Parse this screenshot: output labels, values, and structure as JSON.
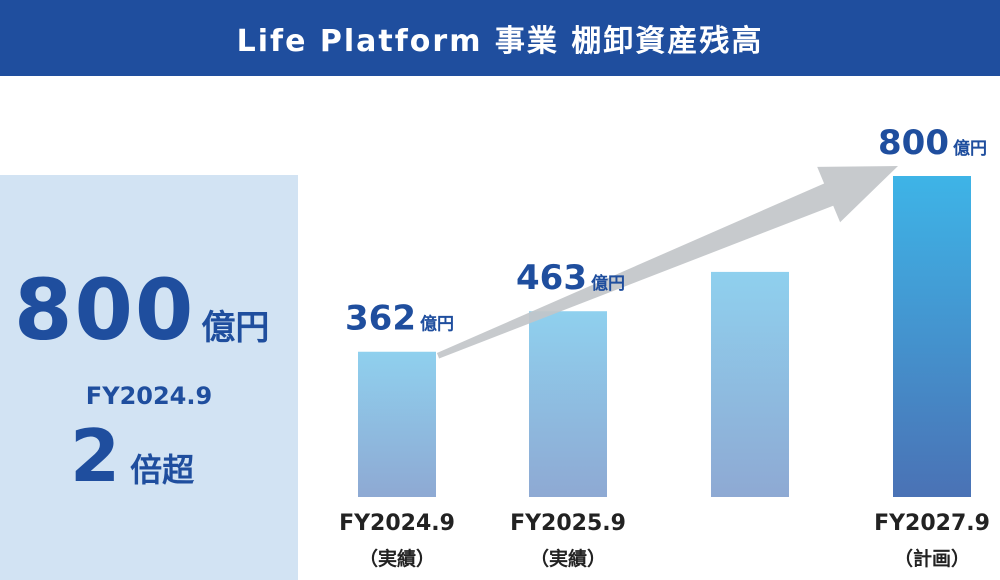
{
  "header": {
    "title": "Life Platform 事業 棚卸資産残高"
  },
  "summary": {
    "value": "800",
    "unit": "億円",
    "period": "FY2024.9",
    "multiple": "2",
    "multiple_suffix": "倍超"
  },
  "colors": {
    "header_bg": "#1f4e9e",
    "text_blue": "#1f4e9e",
    "summary_bg": "#d2e3f3",
    "bar_light_top": "#8fd0ee",
    "bar_light_bottom": "#8ea9d3",
    "bar_dark_top": "#3eb4e7",
    "bar_dark_bottom": "#4a72b5",
    "arrow": "#c2c6c9"
  },
  "chart_data": {
    "type": "bar",
    "unit": "億円",
    "categories": [
      {
        "line1": "FY2024.9",
        "line2": "（実績）"
      },
      {
        "line1": "FY2025.9",
        "line2": "（実績）"
      },
      {
        "line1": "",
        "line2": ""
      },
      {
        "line1": "FY2027.9",
        "line2": "（計画）"
      }
    ],
    "values": [
      362,
      463,
      561,
      800
    ],
    "labels": [
      "362",
      "463",
      "",
      "800"
    ],
    "ylim": [
      0,
      800
    ],
    "grid": false,
    "legend": "none",
    "annotation": "trend-arrow"
  }
}
